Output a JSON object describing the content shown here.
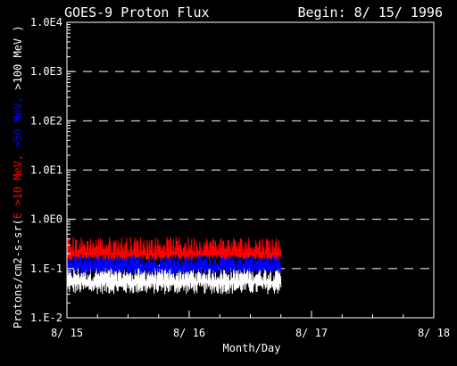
{
  "chart_data": {
    "type": "line",
    "title": "GOES-9 Proton Flux",
    "subtitle": "Begin: 8/ 15/ 1996",
    "xlabel": "Month/Day",
    "ylabel_parts": [
      {
        "text": "Protons/cm2-s-sr(",
        "color": "#ffffff"
      },
      {
        "text": "E >10 MeV, ",
        "color": "#ff0000"
      },
      {
        "text": ">50 MeV, ",
        "color": "#0000ff"
      },
      {
        "text": ">100 MeV )",
        "color": "#ffffff"
      }
    ],
    "x_ticks": [
      "8/ 15",
      "8/ 16",
      "8/ 17",
      "8/ 18"
    ],
    "xlim": [
      0,
      3
    ],
    "y_ticks": [
      "1.E-2",
      "1.E-1",
      "1.0E0",
      "1.0E1",
      "1.0E2",
      "1.0E3",
      "1.0E4"
    ],
    "ylim_log10": [
      -2,
      4
    ],
    "y_scale": "log",
    "grid": "dashed horizontal at each decade",
    "data_end_x": 1.75,
    "series": [
      {
        "key": ">10 MeV",
        "color": "#ff0000",
        "base": 0.2,
        "spread": [
          0.15,
          0.45
        ]
      },
      {
        "key": ">50 MeV",
        "color": "#0000ff",
        "base": 0.11,
        "spread": [
          0.075,
          0.2
        ]
      },
      {
        "key": ">100 MeV",
        "color": "#ffffff",
        "base": 0.055,
        "spread": [
          0.03,
          0.12
        ]
      }
    ]
  }
}
